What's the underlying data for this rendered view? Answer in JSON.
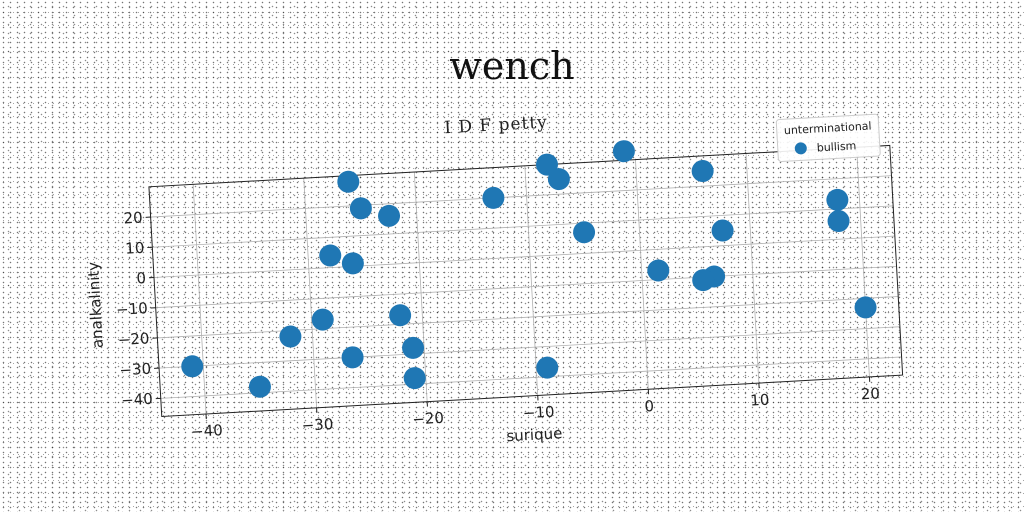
{
  "figure": {
    "title": "wench"
  },
  "chart_data": {
    "type": "scatter",
    "title": "I D F petty",
    "xlabel": "surique",
    "ylabel": "analkalinity",
    "xlim": [
      -44,
      23
    ],
    "ylim": [
      -46,
      30
    ],
    "xticks": [
      -40,
      -30,
      -20,
      -10,
      0,
      10,
      20
    ],
    "yticks": [
      -40,
      -30,
      -20,
      -10,
      0,
      10,
      20
    ],
    "grid": true,
    "legend": {
      "title": "unterminational",
      "position": "top-right"
    },
    "series": [
      {
        "name": "bullism",
        "color": "#1f77b4",
        "points": [
          {
            "x": -26,
            "y": 28
          },
          {
            "x": -25,
            "y": 19
          },
          {
            "x": -22.5,
            "y": 16
          },
          {
            "x": -28,
            "y": 4
          },
          {
            "x": -26,
            "y": 1
          },
          {
            "x": -13,
            "y": 20
          },
          {
            "x": -8,
            "y": 30
          },
          {
            "x": -7,
            "y": 25
          },
          {
            "x": -1,
            "y": 33
          },
          {
            "x": 6,
            "y": 25
          },
          {
            "x": -5,
            "y": 7
          },
          {
            "x": 18,
            "y": 13
          },
          {
            "x": 18,
            "y": 6
          },
          {
            "x": 7.5,
            "y": 5
          },
          {
            "x": 1.5,
            "y": -7
          },
          {
            "x": 6.5,
            "y": -10
          },
          {
            "x": 5.5,
            "y": -11
          },
          {
            "x": 20,
            "y": -23
          },
          {
            "x": -29,
            "y": -17
          },
          {
            "x": -22,
            "y": -17
          },
          {
            "x": -32,
            "y": -22
          },
          {
            "x": -41,
            "y": -30
          },
          {
            "x": -26.5,
            "y": -30
          },
          {
            "x": -21,
            "y": -28
          },
          {
            "x": -35,
            "y": -38
          },
          {
            "x": -21,
            "y": -38
          },
          {
            "x": -9,
            "y": -37
          }
        ]
      }
    ]
  }
}
